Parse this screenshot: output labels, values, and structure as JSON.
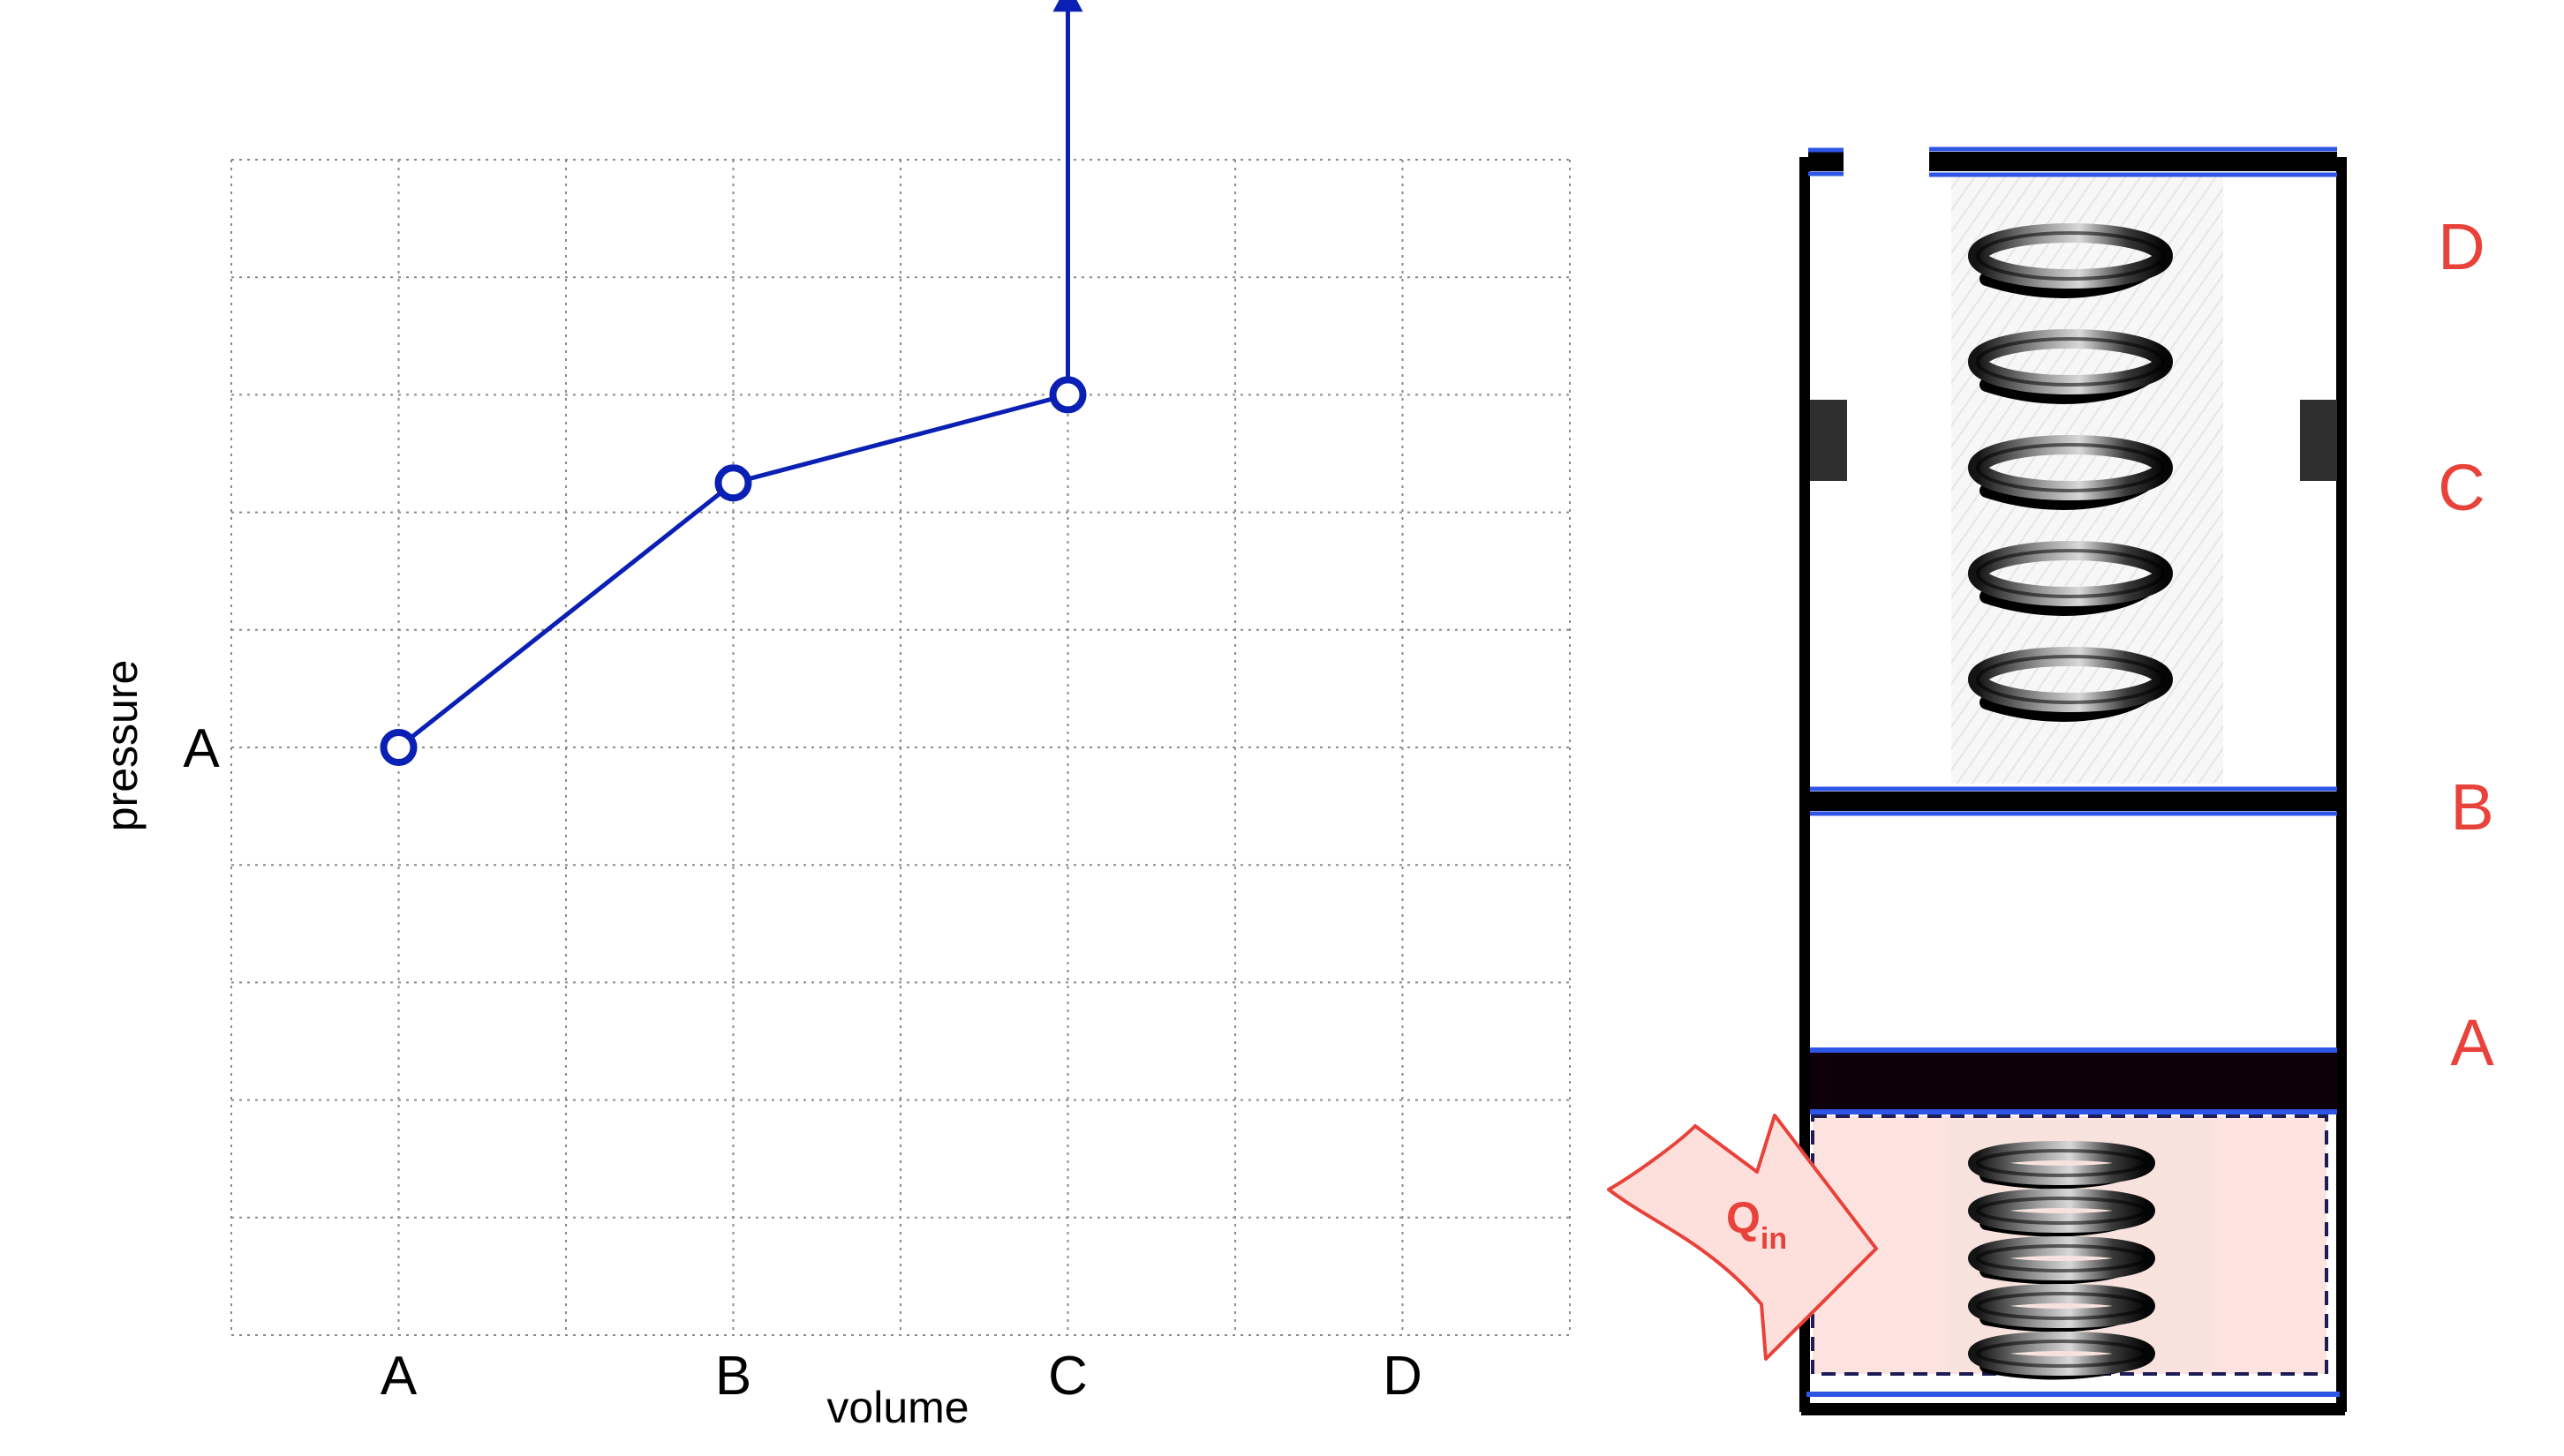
{
  "chart_data": {
    "type": "line",
    "xlabel": "volume",
    "ylabel": "pressure",
    "categories": [
      "A",
      "B",
      "C",
      "D"
    ],
    "y_tick_labels": [
      {
        "label": "A",
        "value": 5
      }
    ],
    "x_range": [
      -1,
      7
    ],
    "y_range": [
      0,
      10
    ],
    "grid": true,
    "series": [
      {
        "x": [
          0,
          2,
          4
        ],
        "y": [
          5,
          7.25,
          8
        ]
      }
    ],
    "arrow": {
      "from": [
        4,
        8
      ],
      "to": [
        4,
        11.5
      ],
      "direction": "up"
    },
    "colors": {
      "line": "#0a1fb3",
      "grid": "#8a8a8a"
    }
  },
  "diagram": {
    "stage_labels": [
      "D",
      "C",
      "B",
      "A"
    ],
    "heat_label_main": "Q",
    "heat_label_sub": "in",
    "colors": {
      "wall": "#000000",
      "plate_edge": "#2f55e6",
      "stage_label": "#e8423a",
      "heat_fill": "#fde3df",
      "heat_stroke": "#e8423a",
      "stop_block": "#2f2f2f"
    }
  }
}
